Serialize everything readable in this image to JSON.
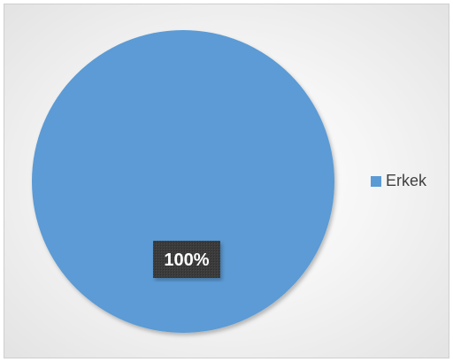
{
  "chart_data": {
    "type": "pie",
    "categories": [
      "Erkek"
    ],
    "values": [
      100
    ],
    "data_labels": [
      "100%"
    ],
    "legend_placement": "right",
    "colors": {
      "slice": "#5b9bd5",
      "label_bg": "#3a3a3a",
      "label_text": "#ffffff"
    }
  }
}
